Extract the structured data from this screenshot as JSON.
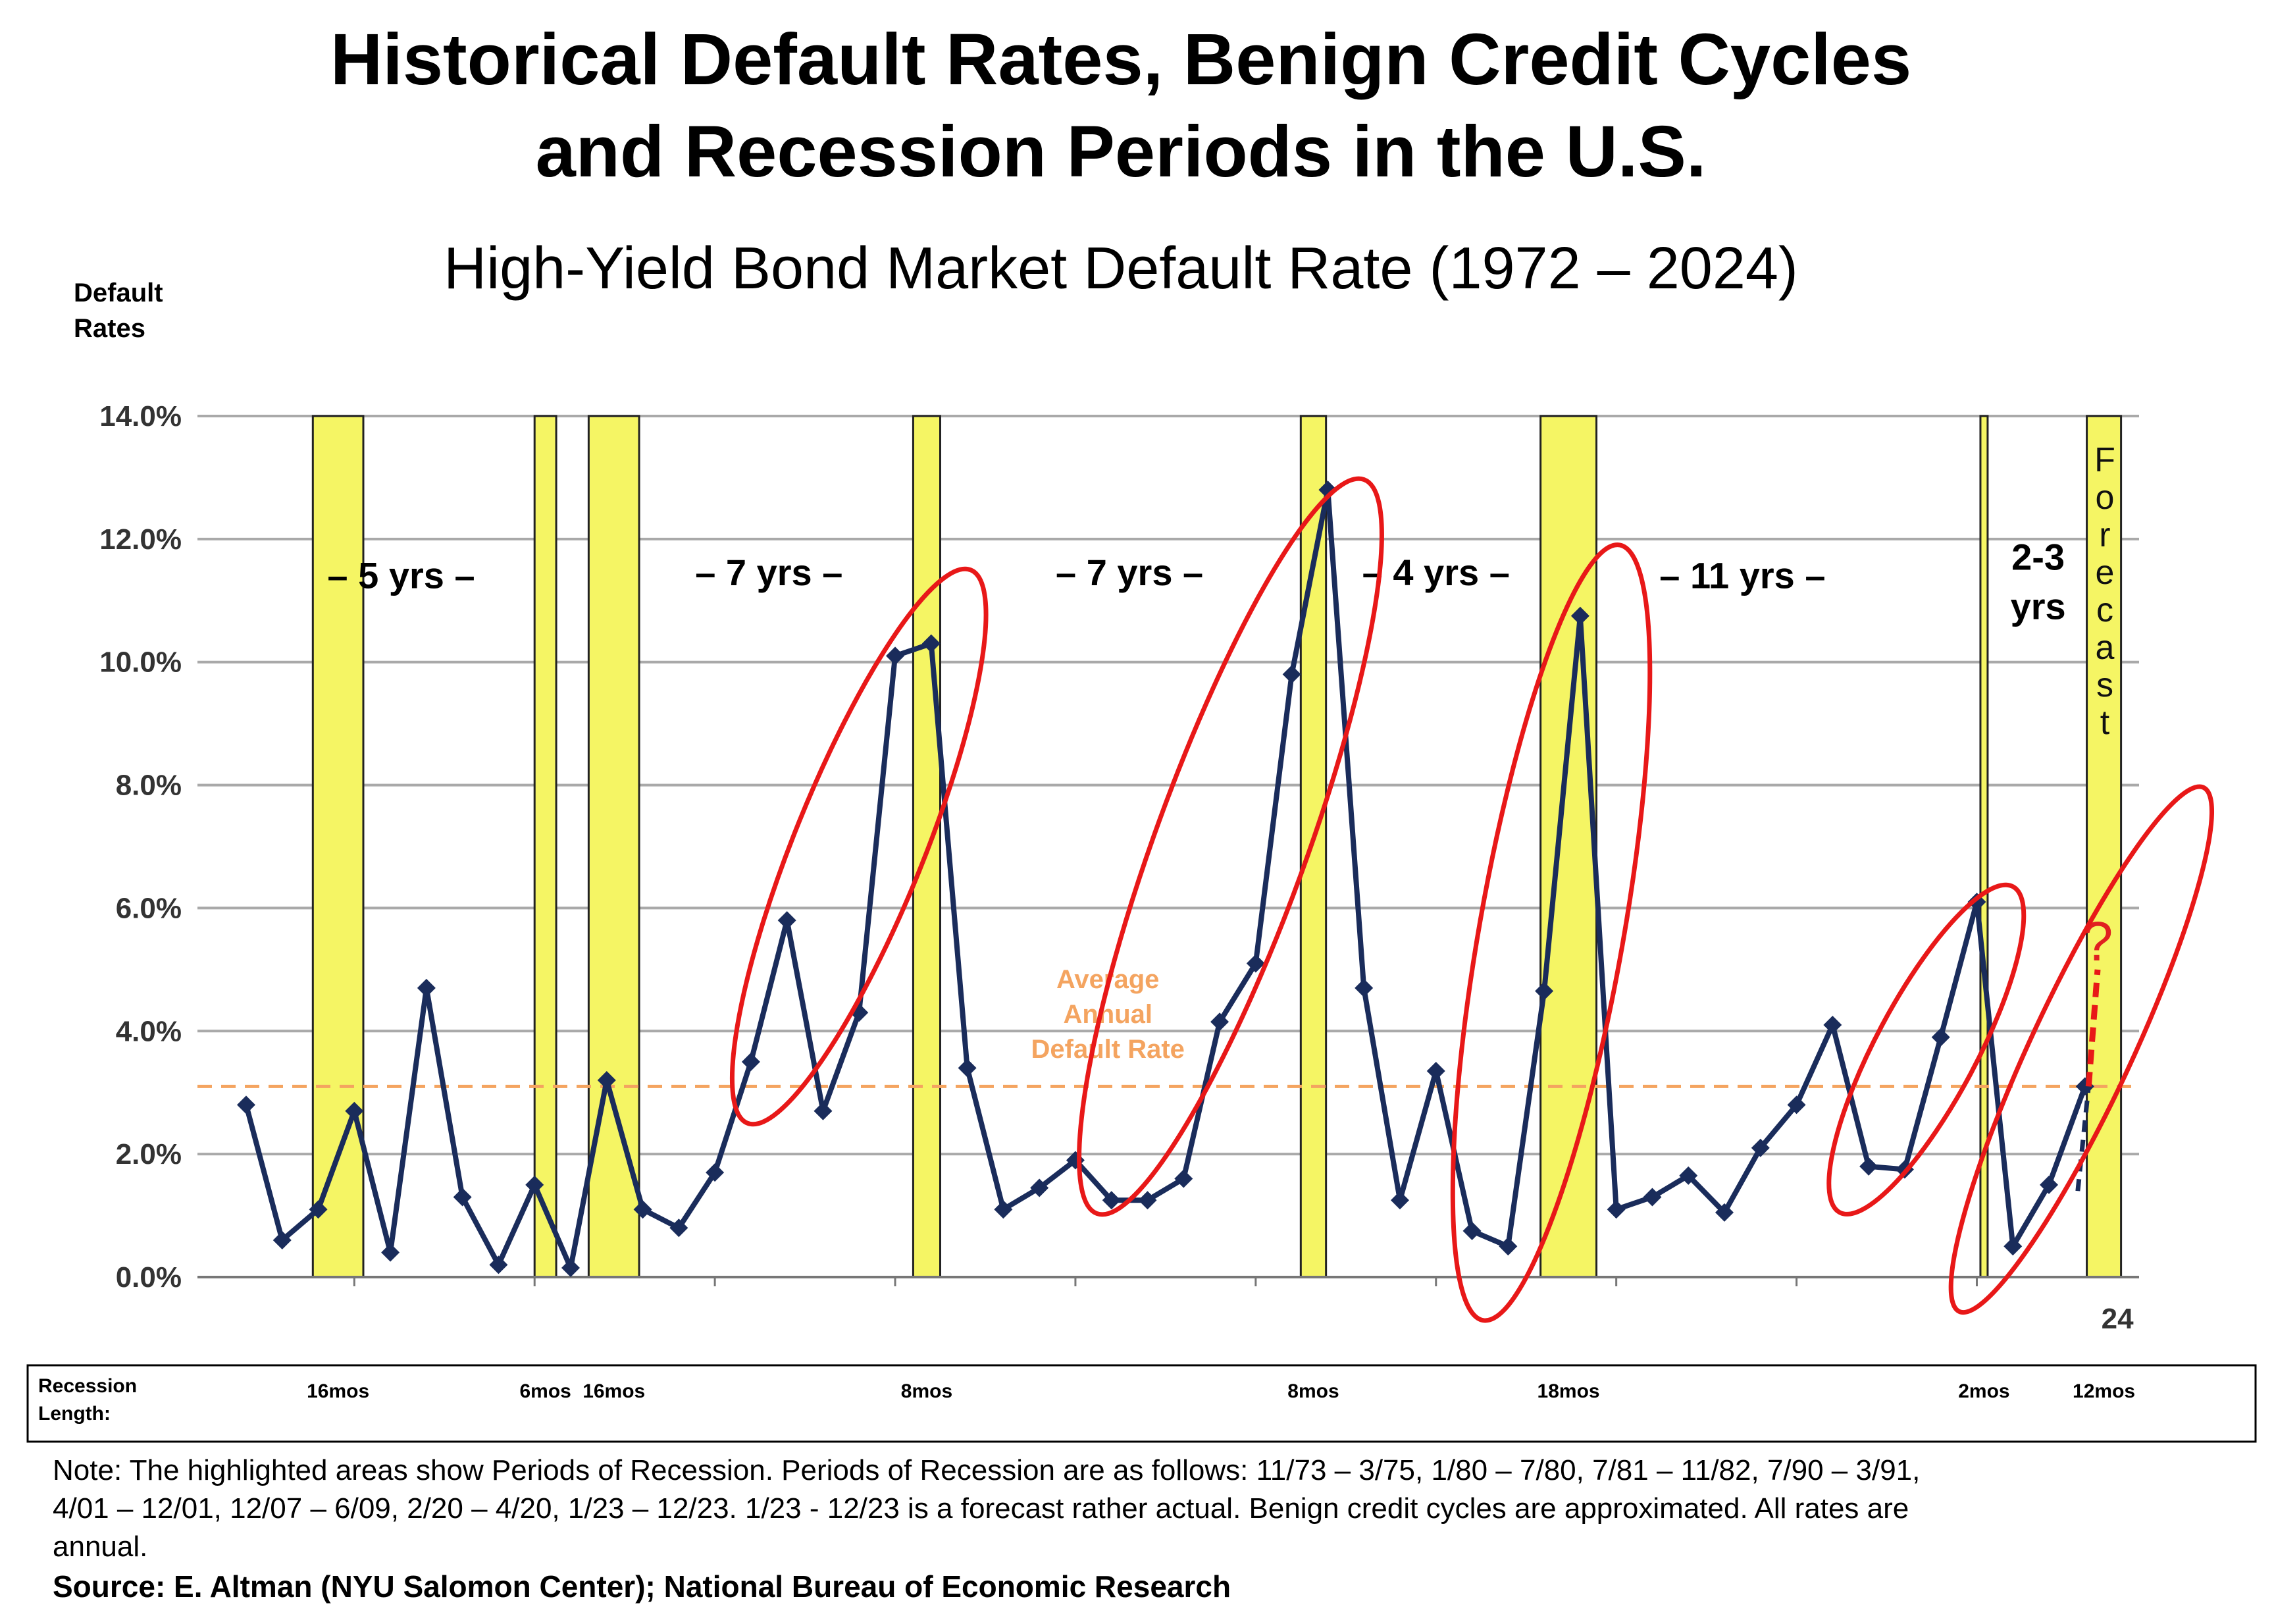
{
  "title_line1": "Historical Default Rates, Benign Credit Cycles",
  "title_line2": "and Recession Periods in the U.S.",
  "subtitle": "High-Yield Bond Market Default Rate (1972 – 2024)",
  "colors": {
    "line": "#1a2c5b",
    "recession": "#f5f564",
    "ellipse": "#e81818",
    "average": "#f4a460",
    "grid": "#a9a9a9"
  },
  "chart_data": {
    "type": "line",
    "title": "High-Yield Bond Market Default Rate (1972 – 2024)",
    "ylabel_line1": "Default",
    "ylabel_line2": "Rates",
    "ylim": [
      0,
      14
    ],
    "yticks": [
      "0.0%",
      "2.0%",
      "4.0%",
      "6.0%",
      "8.0%",
      "10.0%",
      "12.0%",
      "14.0%"
    ],
    "x_start_year": 1972,
    "x_end_label": "24",
    "series": [
      {
        "name": "High-Yield Default Rate",
        "x": [
          1972,
          1973,
          1974,
          1975,
          1976,
          1977,
          1978,
          1979,
          1980,
          1981,
          1982,
          1983,
          1984,
          1985,
          1986,
          1987,
          1988,
          1989,
          1990,
          1991,
          1992,
          1993,
          1994,
          1995,
          1996,
          1997,
          1998,
          1999,
          2000,
          2001,
          2002,
          2003,
          2004,
          2005,
          2006,
          2007,
          2008,
          2009,
          2010,
          2011,
          2012,
          2013,
          2014,
          2015,
          2016,
          2017,
          2018,
          2019,
          2020,
          2021,
          2022,
          2023
        ],
        "values": [
          2.8,
          0.6,
          1.1,
          2.7,
          0.4,
          4.7,
          1.3,
          0.2,
          1.5,
          0.15,
          3.2,
          1.1,
          0.8,
          1.7,
          3.5,
          5.8,
          2.7,
          4.3,
          10.1,
          10.3,
          3.4,
          1.1,
          1.45,
          1.9,
          1.25,
          1.25,
          1.6,
          4.15,
          5.1,
          9.8,
          12.8,
          4.7,
          1.25,
          3.35,
          0.75,
          0.5,
          4.65,
          10.75,
          1.1,
          1.3,
          1.65,
          1.05,
          2.1,
          2.8,
          4.1,
          1.8,
          1.75,
          3.9,
          6.1,
          0.5,
          1.5,
          3.1
        ]
      }
    ],
    "average_annual_default_rate": 3.1,
    "average_label_lines": [
      "Average",
      "Annual",
      "Default Rate"
    ],
    "forecast": {
      "from": [
        2022.8,
        1.4
      ],
      "to": [
        2023.1,
        3.1
      ],
      "end_label": "?"
    },
    "forecast_vertical_label": "Forecast",
    "recession_periods": [
      {
        "start": 1973.85,
        "end": 1975.25,
        "length": "16mos"
      },
      {
        "start": 1980.0,
        "end": 1980.6,
        "length": "6mos"
      },
      {
        "start": 1981.5,
        "end": 1982.9,
        "length": "16mos"
      },
      {
        "start": 1990.5,
        "end": 1991.25,
        "length": "8mos"
      },
      {
        "start": 2001.25,
        "end": 2001.95,
        "length": "8mos"
      },
      {
        "start": 2007.9,
        "end": 2009.45,
        "length": "18mos"
      },
      {
        "start": 2020.1,
        "end": 2020.3,
        "length": "2mos"
      },
      {
        "start": 2023.05,
        "end": 2024.0,
        "length": "12mos"
      }
    ],
    "benign_cycles": [
      {
        "label": "– 5 yrs –",
        "x": 1976.3,
        "y": 11.2
      },
      {
        "label": "– 7 yrs –",
        "x": 1986.5,
        "y": 11.25
      },
      {
        "label": "– 7 yrs –",
        "x": 1996.5,
        "y": 11.25
      },
      {
        "label": "– 4 yrs –",
        "x": 2005.0,
        "y": 11.25
      },
      {
        "label": "– 11 yrs –",
        "x": 2013.5,
        "y": 11.2
      },
      {
        "label": "2-3",
        "x": 2021.7,
        "y": 11.5
      },
      {
        "label": "yrs",
        "x": 2021.7,
        "y": 10.7
      }
    ],
    "highlight_ellipses": [
      {
        "cx": 1989.0,
        "cy": 7.0,
        "rx": 1.8,
        "ry": 4.85,
        "angle": 22
      },
      {
        "cx": 1999.3,
        "cy": 7.0,
        "rx": 2.1,
        "ry": 6.35,
        "angle": 20
      },
      {
        "cx": 2008.2,
        "cy": 5.6,
        "rx": 2.0,
        "ry": 6.4,
        "angle": 10
      },
      {
        "cx": 2018.6,
        "cy": 3.7,
        "rx": 1.4,
        "ry": 3.0,
        "angle": 28
      },
      {
        "cx": 2022.9,
        "cy": 3.7,
        "rx": 1.4,
        "ry": 4.7,
        "angle": 25
      }
    ]
  },
  "recession_row_label_line1": "Recession",
  "recession_row_label_line2": "Length:",
  "note_line1": "Note: The highlighted areas show Periods of Recession. Periods of Recession are as follows: 11/73 – 3/75, 1/80 – 7/80, 7/81 – 11/82, 7/90 – 3/91,",
  "note_line2": "4/01 – 12/01, 12/07 – 6/09, 2/20 – 4/20, 1/23 – 12/23. 1/23 - 12/23 is a forecast rather actual. Benign credit cycles are approximated. All rates are",
  "note_line3": "annual.",
  "source": "Source: E. Altman (NYU Salomon Center); National Bureau of Economic Research"
}
